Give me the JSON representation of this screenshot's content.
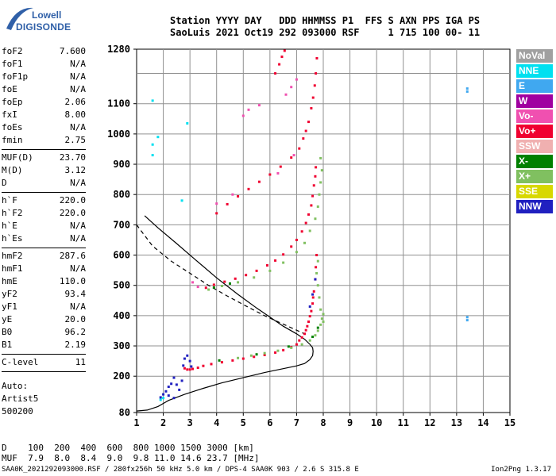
{
  "logo": {
    "line1": "Lowell",
    "line2": "DIGISONDE"
  },
  "header": {
    "line1": "Station YYYY DAY   DDD HHMMSS P1  FFS S AXN PPS IGA PS",
    "line2": "SaoLuis 2021 Oct19 292 093000 RSF     1 715 100 00- 11"
  },
  "params": [
    [
      {
        "name": "foF2",
        "value": "7.600"
      },
      {
        "name": "foF1",
        "value": "N/A"
      },
      {
        "name": "foF1p",
        "value": "N/A"
      },
      {
        "name": "foE",
        "value": "N/A"
      },
      {
        "name": "foEp",
        "value": "2.06"
      },
      {
        "name": "fxI",
        "value": "8.00"
      },
      {
        "name": "foEs",
        "value": "N/A"
      },
      {
        "name": "fmin",
        "value": "2.75"
      }
    ],
    [
      {
        "name": "MUF(D)",
        "value": "23.70"
      },
      {
        "name": "M(D)",
        "value": "3.12"
      },
      {
        "name": "D",
        "value": "N/A"
      }
    ],
    [
      {
        "name": "h`F",
        "value": "220.0"
      },
      {
        "name": "h`F2",
        "value": "220.0"
      },
      {
        "name": "h`E",
        "value": "N/A"
      },
      {
        "name": "h`Es",
        "value": "N/A"
      }
    ],
    [
      {
        "name": "hmF2",
        "value": "287.6"
      },
      {
        "name": "hmF1",
        "value": "N/A"
      },
      {
        "name": "hmE",
        "value": "110.0"
      },
      {
        "name": "yF2",
        "value": "93.4"
      },
      {
        "name": "yF1",
        "value": "N/A"
      },
      {
        "name": "yE",
        "value": "20.0"
      },
      {
        "name": "B0",
        "value": "96.2"
      },
      {
        "name": "B1",
        "value": "2.19"
      }
    ],
    [
      {
        "name": "C-level",
        "value": "11"
      }
    ]
  ],
  "auto": {
    "line1": "Auto:",
    "line2": "Artist5",
    "line3": "500200"
  },
  "legend": [
    {
      "label": "NoVal",
      "color": "#a0a0a0"
    },
    {
      "label": "NNE",
      "color": "#00e0f0"
    },
    {
      "label": "E",
      "color": "#40a8f0"
    },
    {
      "label": "W",
      "color": "#a000a0"
    },
    {
      "label": "Vo-",
      "color": "#f050b0"
    },
    {
      "label": "Vo+",
      "color": "#f00030"
    },
    {
      "label": "SSW",
      "color": "#f0b0b0"
    },
    {
      "label": "X-",
      "color": "#008000"
    },
    {
      "label": "X+",
      "color": "#80c060"
    },
    {
      "label": "SSE",
      "color": "#d8d800"
    },
    {
      "label": "NNW",
      "color": "#2020c0"
    }
  ],
  "bottom_table": {
    "line1": "D    100  200  400  600  800 1000 1500 3000 [km]",
    "line2": "MUF  7.9  8.0  8.4  9.0  9.8 11.0 14.6 23.7 [MHz]"
  },
  "footer": {
    "left": "SAA0K_2021292093000.RSF / 280fx256h 50 kHz 5.0 km / DPS-4 SAA0K 903 / 2.6 S 315.8 E",
    "right": "Ion2Png 1.3.17"
  },
  "chart_data": {
    "type": "scatter",
    "title": "",
    "xlabel": "",
    "ylabel": "",
    "xlim": [
      1,
      15
    ],
    "ylim": [
      80,
      1280
    ],
    "grid": true,
    "x_ticks": [
      1,
      2,
      3,
      4,
      5,
      6,
      7,
      8,
      9,
      10,
      11,
      12,
      13,
      14,
      15
    ],
    "y_ticks": [
      80,
      200,
      300,
      400,
      500,
      600,
      700,
      800,
      900,
      1000,
      1100,
      1280
    ],
    "series": [
      {
        "name": "Vo+",
        "color": "#f00030",
        "points": [
          [
            2.8,
            226
          ],
          [
            2.9,
            222
          ],
          [
            3.0,
            222
          ],
          [
            3.1,
            224
          ],
          [
            3.3,
            228
          ],
          [
            3.5,
            234
          ],
          [
            3.8,
            240
          ],
          [
            4.2,
            246
          ],
          [
            4.6,
            252
          ],
          [
            5.0,
            258
          ],
          [
            5.4,
            264
          ],
          [
            5.8,
            270
          ],
          [
            6.2,
            278
          ],
          [
            6.5,
            286
          ],
          [
            6.8,
            296
          ],
          [
            7.0,
            305
          ],
          [
            7.1,
            318
          ],
          [
            7.2,
            328
          ],
          [
            7.3,
            340
          ],
          [
            7.35,
            352
          ],
          [
            7.4,
            365
          ],
          [
            7.45,
            380
          ],
          [
            7.5,
            398
          ],
          [
            7.55,
            415
          ],
          [
            7.6,
            440
          ],
          [
            7.62,
            460
          ],
          [
            7.65,
            480
          ],
          [
            7.7,
            520
          ],
          [
            7.72,
            560
          ],
          [
            7.75,
            600
          ],
          [
            3.6,
            492
          ],
          [
            3.9,
            502
          ],
          [
            4.3,
            512
          ],
          [
            4.7,
            522
          ],
          [
            5.1,
            534
          ],
          [
            5.5,
            548
          ],
          [
            5.9,
            566
          ],
          [
            6.2,
            582
          ],
          [
            6.5,
            602
          ],
          [
            6.8,
            628
          ],
          [
            7.0,
            650
          ],
          [
            7.2,
            678
          ],
          [
            7.35,
            706
          ],
          [
            7.45,
            734
          ],
          [
            7.55,
            764
          ],
          [
            7.6,
            795
          ],
          [
            7.65,
            830
          ],
          [
            7.7,
            860
          ],
          [
            7.72,
            890
          ],
          [
            4.0,
            738
          ],
          [
            4.4,
            768
          ],
          [
            4.8,
            794
          ],
          [
            5.2,
            818
          ],
          [
            5.6,
            842
          ],
          [
            6.0,
            866
          ],
          [
            6.4,
            892
          ],
          [
            6.8,
            922
          ],
          [
            7.1,
            952
          ],
          [
            7.25,
            985
          ],
          [
            7.35,
            1010
          ],
          [
            7.45,
            1040
          ],
          [
            7.55,
            1085
          ],
          [
            7.62,
            1120
          ],
          [
            7.68,
            1160
          ],
          [
            7.72,
            1200
          ],
          [
            7.76,
            1250
          ],
          [
            6.2,
            1200
          ],
          [
            6.35,
            1230
          ],
          [
            6.45,
            1255
          ],
          [
            6.55,
            1275
          ]
        ]
      },
      {
        "name": "X+",
        "color": "#80c060",
        "points": [
          [
            4.8,
            260
          ],
          [
            5.3,
            268
          ],
          [
            5.8,
            276
          ],
          [
            6.3,
            284
          ],
          [
            6.8,
            294
          ],
          [
            7.2,
            305
          ],
          [
            7.5,
            318
          ],
          [
            7.7,
            335
          ],
          [
            7.8,
            350
          ],
          [
            7.9,
            370
          ],
          [
            7.95,
            390
          ],
          [
            8.0,
            405
          ],
          [
            8.0,
            380
          ],
          [
            7.9,
            420
          ],
          [
            7.85,
            460
          ],
          [
            7.8,
            500
          ],
          [
            7.75,
            540
          ],
          [
            7.8,
            580
          ],
          [
            3.7,
            486
          ],
          [
            4.2,
            498
          ],
          [
            4.8,
            510
          ],
          [
            5.4,
            526
          ],
          [
            6.0,
            548
          ],
          [
            6.5,
            575
          ],
          [
            7.0,
            610
          ],
          [
            7.3,
            640
          ],
          [
            7.5,
            680
          ],
          [
            7.7,
            720
          ],
          [
            7.8,
            760
          ],
          [
            7.85,
            800
          ],
          [
            7.9,
            840
          ],
          [
            7.95,
            880
          ],
          [
            7.9,
            920
          ]
        ]
      },
      {
        "name": "NNW",
        "color": "#2020c0",
        "points": [
          [
            1.9,
            130
          ],
          [
            2.0,
            140
          ],
          [
            2.1,
            150
          ],
          [
            2.2,
            165
          ],
          [
            2.3,
            175
          ],
          [
            2.4,
            195
          ],
          [
            2.5,
            172
          ],
          [
            2.6,
            155
          ],
          [
            2.7,
            185
          ],
          [
            2.75,
            235
          ],
          [
            2.8,
            258
          ],
          [
            2.9,
            268
          ],
          [
            3.0,
            250
          ],
          [
            3.05,
            232
          ],
          [
            2.4,
            128
          ],
          [
            2.2,
            136
          ],
          [
            7.6,
            470
          ],
          [
            7.7,
            520
          ],
          [
            7.5,
            430
          ]
        ]
      },
      {
        "name": "NNE",
        "color": "#00e0f0",
        "points": [
          [
            1.9,
            122
          ],
          [
            2.0,
            128
          ],
          [
            1.6,
            930
          ],
          [
            1.6,
            965
          ],
          [
            1.6,
            1110
          ],
          [
            2.7,
            780
          ],
          [
            2.9,
            1035
          ],
          [
            1.8,
            990
          ]
        ]
      },
      {
        "name": "E",
        "color": "#40a8f0",
        "points": [
          [
            13.4,
            1140
          ],
          [
            13.4,
            1150
          ],
          [
            13.4,
            385
          ],
          [
            13.4,
            395
          ]
        ]
      },
      {
        "name": "Vo-",
        "color": "#f050b0",
        "points": [
          [
            5.0,
            1060
          ],
          [
            5.2,
            1080
          ],
          [
            5.6,
            1095
          ],
          [
            6.6,
            1130
          ],
          [
            6.8,
            1155
          ],
          [
            7.0,
            1180
          ],
          [
            4.0,
            770
          ],
          [
            4.6,
            800
          ],
          [
            6.3,
            870
          ],
          [
            6.9,
            930
          ],
          [
            3.1,
            510
          ],
          [
            3.3,
            495
          ]
        ]
      },
      {
        "name": "X-",
        "color": "#008000",
        "points": [
          [
            4.1,
            252
          ],
          [
            5.5,
            272
          ],
          [
            6.7,
            298
          ],
          [
            7.6,
            330
          ],
          [
            7.8,
            360
          ],
          [
            3.9,
            493
          ],
          [
            4.5,
            506
          ]
        ]
      }
    ],
    "lines": [
      {
        "name": "profile",
        "style": "solid",
        "color": "#000000",
        "points": [
          [
            1.0,
            85
          ],
          [
            1.4,
            88
          ],
          [
            1.8,
            100
          ],
          [
            2.2,
            120
          ],
          [
            2.8,
            140
          ],
          [
            3.5,
            160
          ],
          [
            4.2,
            178
          ],
          [
            5.0,
            195
          ],
          [
            5.8,
            212
          ],
          [
            6.5,
            225
          ],
          [
            7.0,
            234
          ],
          [
            7.3,
            242
          ],
          [
            7.5,
            255
          ],
          [
            7.6,
            268
          ],
          [
            7.62,
            282
          ],
          [
            7.6,
            294
          ],
          [
            7.5,
            305
          ],
          [
            7.3,
            322
          ],
          [
            7.0,
            340
          ],
          [
            6.5,
            365
          ],
          [
            6.0,
            395
          ],
          [
            5.5,
            425
          ],
          [
            4.8,
            470
          ],
          [
            4.0,
            525
          ],
          [
            3.2,
            585
          ],
          [
            2.5,
            638
          ],
          [
            1.8,
            690
          ],
          [
            1.3,
            730
          ]
        ]
      },
      {
        "name": "MUF curve",
        "style": "dashed",
        "color": "#000000",
        "points": [
          [
            1.0,
            700
          ],
          [
            1.6,
            630
          ],
          [
            2.3,
            580
          ],
          [
            3.0,
            540
          ],
          [
            3.7,
            500
          ],
          [
            4.4,
            465
          ],
          [
            5.1,
            432
          ],
          [
            5.8,
            400
          ],
          [
            6.5,
            372
          ],
          [
            7.0,
            352
          ],
          [
            7.3,
            340
          ]
        ]
      }
    ]
  }
}
